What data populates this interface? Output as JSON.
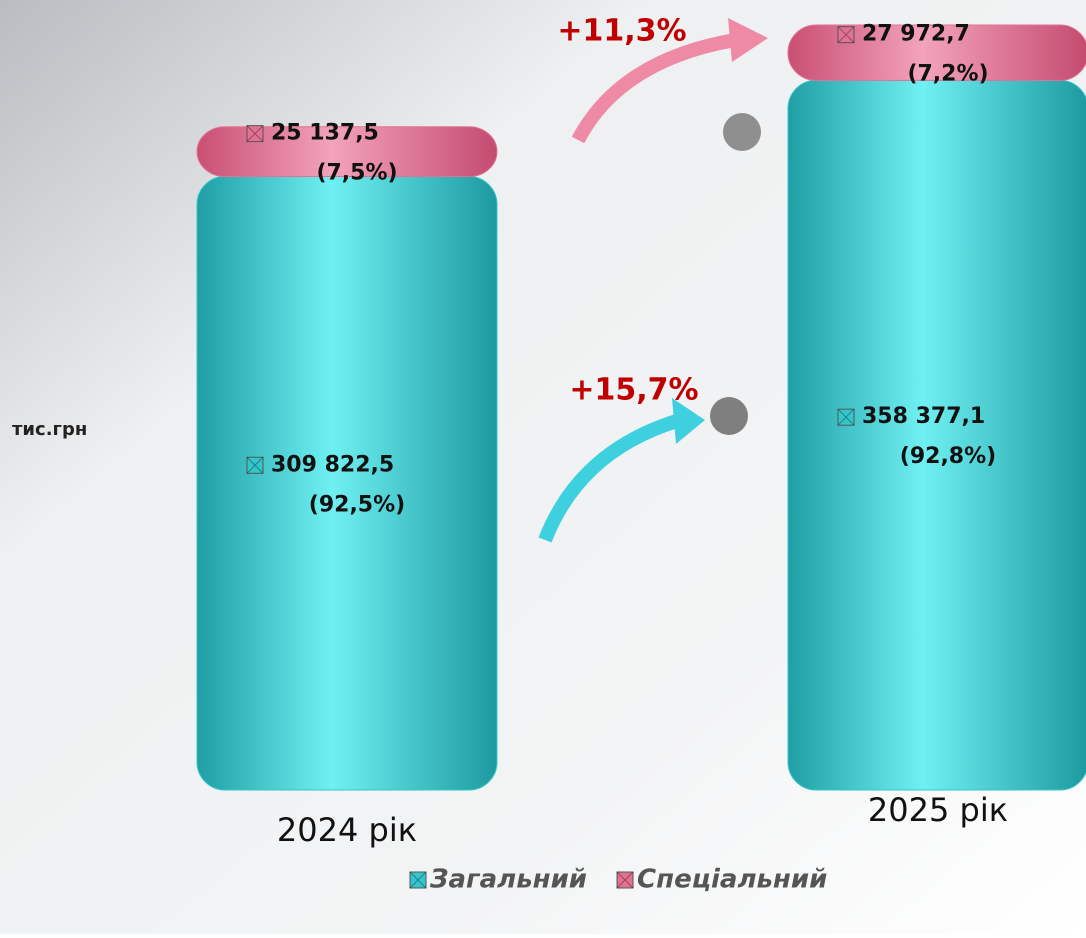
{
  "chart_data": {
    "type": "stacked_bar",
    "unit_label": "тис.грн",
    "categories": [
      "2024 рік",
      "2025 рік"
    ],
    "series": [
      {
        "name": "Загальний",
        "color": "#33c6cb",
        "values": [
          309822.5,
          358377.1
        ],
        "value_labels": [
          "309 822,5",
          "358 377,1"
        ],
        "share_labels": [
          "(92,5%)",
          "(92,8%)"
        ]
      },
      {
        "name": "Спеціальний",
        "color": "#e27192",
        "values": [
          25137.5,
          27972.7
        ],
        "value_labels": [
          "25 137,5",
          "27 972,7"
        ],
        "share_labels": [
          "(7,5%)",
          "(7,2%)"
        ]
      }
    ],
    "annotations": [
      "+11,3%",
      "+15,7%"
    ]
  }
}
